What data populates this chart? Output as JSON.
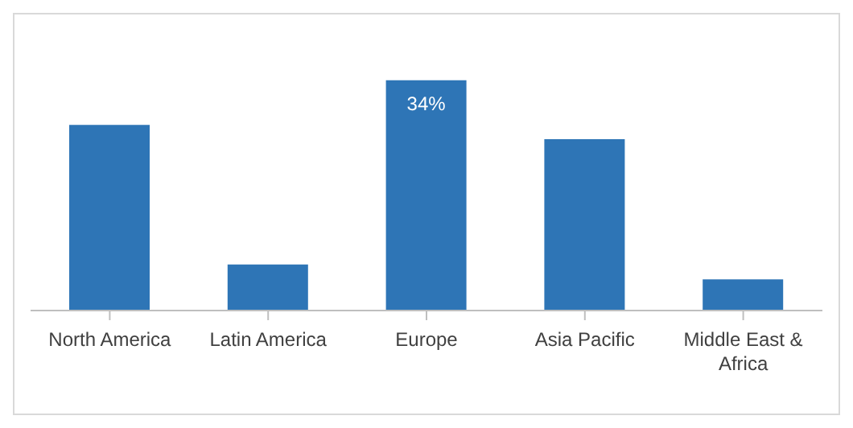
{
  "chart_data": {
    "type": "bar",
    "categories": [
      "North America",
      "Latin America",
      "Europe",
      "Asia Pacific",
      "Middle East & Africa"
    ],
    "values": [
      27.4,
      6.8,
      34,
      25.3,
      4.6
    ],
    "color": "#2e75b6",
    "value_labels": [
      null,
      null,
      "34%",
      null,
      null
    ]
  }
}
